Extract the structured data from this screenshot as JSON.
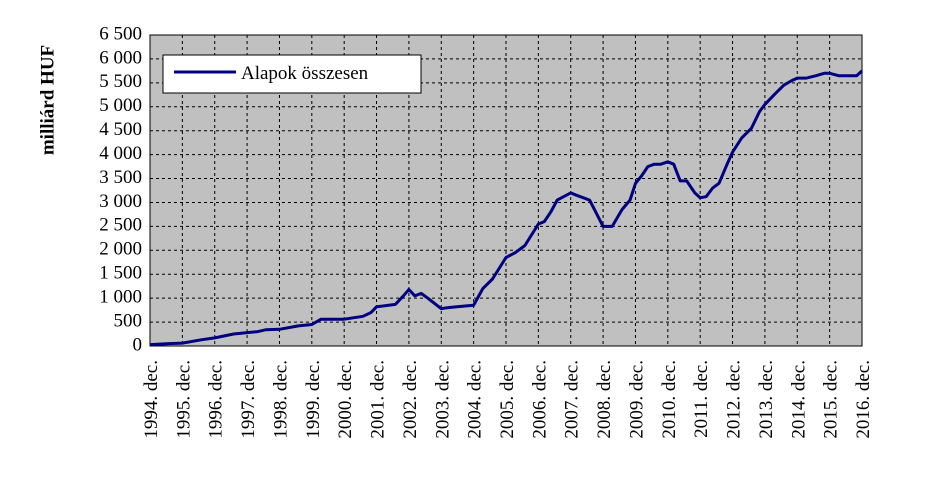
{
  "chart_data": {
    "type": "line",
    "title": "",
    "ylabel": "milliárd HUF",
    "xlabel": "",
    "ylim": [
      0,
      6500
    ],
    "yticks": [
      0,
      500,
      1000,
      1500,
      2000,
      2500,
      3000,
      3500,
      4000,
      4500,
      5000,
      5500,
      6000,
      6500
    ],
    "ytick_labels": [
      "0",
      "500",
      "1 000",
      "1 500",
      "2 000",
      "2 500",
      "3 000",
      "3 500",
      "4 000",
      "4 500",
      "5 000",
      "5 500",
      "6 000",
      "6 500"
    ],
    "xlim": [
      1994.917,
      2016.917
    ],
    "xtick_labels": [
      "1994. dec.",
      "1995. dec.",
      "1996. dec.",
      "1997. dec.",
      "1998. dec.",
      "1999. dec.",
      "2000. dec.",
      "2001. dec.",
      "2002. dec.",
      "2003. dec.",
      "2004. dec.",
      "2005. dec.",
      "2006. dec.",
      "2007. dec.",
      "2008. dec.",
      "2009. dec.",
      "2010. dec.",
      "2011. dec.",
      "2012. dec.",
      "2013. dec.",
      "2014. dec.",
      "2015. dec.",
      "2016. dec."
    ],
    "grid": true,
    "background_color": "#c0c0c0",
    "line_color": "#000080",
    "legend_position": "top-left",
    "series": [
      {
        "name": "Alapok összesen",
        "x": [
          1994.917,
          1995.5,
          1995.917,
          1996.5,
          1996.917,
          1997.5,
          1997.917,
          1998.25,
          1998.5,
          1998.917,
          1999.5,
          1999.917,
          2000.2,
          2000.917,
          2001.5,
          2001.75,
          2001.917,
          2002.5,
          2002.75,
          2002.917,
          2003.1,
          2003.3,
          2003.5,
          2003.917,
          2004.1,
          2004.4,
          2004.917,
          2005.2,
          2005.5,
          2005.917,
          2006.2,
          2006.5,
          2006.917,
          2007.1,
          2007.3,
          2007.5,
          2007.917,
          2008.1,
          2008.3,
          2008.5,
          2008.917,
          2009.2,
          2009.5,
          2009.75,
          2009.917,
          2010.1,
          2010.3,
          2010.5,
          2010.7,
          2010.917,
          2011.1,
          2011.3,
          2011.5,
          2011.75,
          2011.917,
          2012.1,
          2012.3,
          2012.5,
          2012.75,
          2012.917,
          2013.2,
          2013.5,
          2013.75,
          2013.917,
          2014.2,
          2014.5,
          2014.75,
          2014.917,
          2015.2,
          2015.5,
          2015.75,
          2015.917,
          2016.2,
          2016.5,
          2016.75,
          2016.917
        ],
        "y": [
          30,
          50,
          60,
          130,
          170,
          250,
          280,
          300,
          340,
          350,
          420,
          450,
          560,
          560,
          620,
          700,
          820,
          870,
          1050,
          1180,
          1050,
          1100,
          1000,
          780,
          800,
          820,
          850,
          1200,
          1400,
          1850,
          1950,
          2100,
          2550,
          2600,
          2800,
          3050,
          3200,
          3150,
          3100,
          3050,
          2500,
          2500,
          2850,
          3050,
          3400,
          3550,
          3750,
          3800,
          3800,
          3850,
          3800,
          3450,
          3450,
          3200,
          3100,
          3120,
          3300,
          3400,
          3800,
          4050,
          4350,
          4550,
          4900,
          5050,
          5250,
          5450,
          5550,
          5600,
          5600,
          5650,
          5700,
          5700,
          5650,
          5650,
          5650,
          5750
        ]
      }
    ]
  }
}
